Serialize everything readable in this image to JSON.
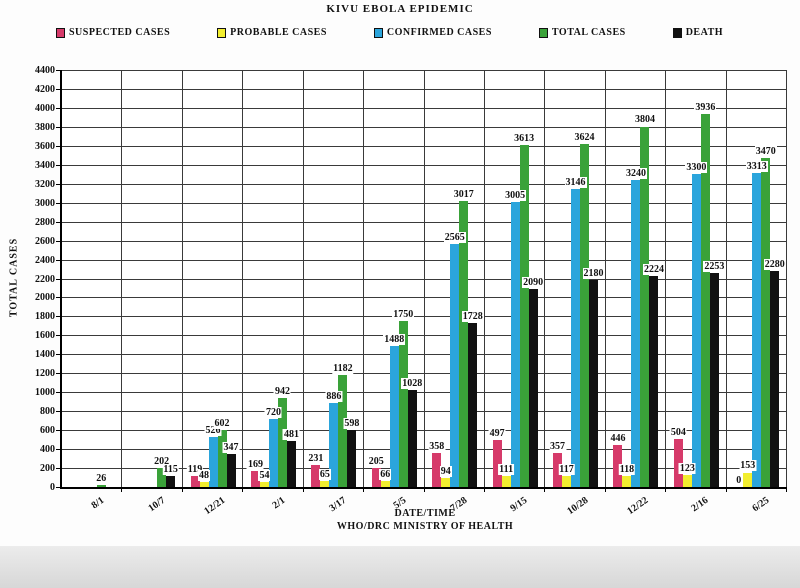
{
  "chart_data": {
    "type": "bar",
    "title": "KIVU EBOLA EPIDEMIC",
    "xlabel": "DATE/TIME",
    "source": "WHO/DRC MINISTRY OF HEALTH",
    "ylabel": "TOTAL CASES",
    "ylim": [
      0,
      4400
    ],
    "ytick_step": 200,
    "grid": true,
    "legend_position": "top",
    "categories": [
      "8/1",
      "10/7",
      "12/21",
      "2/1",
      "3/17",
      "5/5",
      "7/28",
      "9/15",
      "10/28",
      "12/22",
      "2/16",
      "6/25"
    ],
    "series": [
      {
        "name": "SUSPECTED CASES",
        "color": "#d63a6a",
        "values": [
          null,
          null,
          119,
          169,
          231,
          205,
          358,
          497,
          357,
          446,
          504,
          0
        ]
      },
      {
        "name": "PROBABLE CASES",
        "color": "#f2ee2f",
        "values": [
          null,
          null,
          48,
          54,
          65,
          66,
          94,
          111,
          117,
          118,
          123,
          153
        ]
      },
      {
        "name": "CONFIRMED CASES",
        "color": "#2ba5dc",
        "values": [
          null,
          null,
          526,
          720,
          886,
          1488,
          2565,
          3005,
          3146,
          3240,
          3300,
          3313
        ]
      },
      {
        "name": "TOTAL CASES",
        "color": "#3aa239",
        "values": [
          26,
          202,
          602,
          942,
          1182,
          1750,
          3017,
          3613,
          3624,
          3804,
          3936,
          3470
        ]
      },
      {
        "name": "DEATH",
        "color": "#111111",
        "values": [
          null,
          115,
          347,
          481,
          598,
          1028,
          1728,
          2090,
          2180,
          2224,
          2253,
          2280
        ]
      }
    ]
  }
}
